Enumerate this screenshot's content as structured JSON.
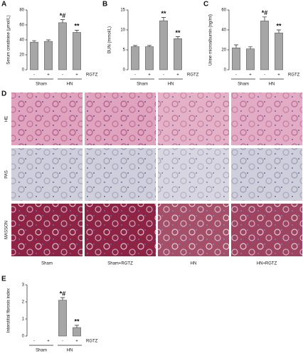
{
  "chart_data": [
    {
      "type": "bar",
      "panel": "A",
      "y_label": "Serum creatinine (μmol/L)",
      "categories": [
        "-",
        "+",
        "-",
        "+"
      ],
      "groups": [
        "Sham",
        "HN"
      ],
      "treatment_label": "RGTZ",
      "values": [
        37,
        38,
        63,
        50
      ],
      "errors": [
        2,
        2,
        4,
        3
      ],
      "annotations": [
        null,
        null,
        "*#",
        "**"
      ],
      "color": "#a6a6a6",
      "ylim": [
        0,
        80
      ],
      "yticks": [
        0,
        20,
        40,
        60,
        80
      ]
    },
    {
      "type": "bar",
      "panel": "B",
      "y_label": "BUN (mmol/L)",
      "categories": [
        "-",
        "+",
        "-",
        "+"
      ],
      "groups": [
        "Sham",
        "HN"
      ],
      "treatment_label": "RGTZ",
      "values": [
        5.8,
        5.8,
        12.3,
        7.8
      ],
      "errors": [
        0.3,
        0.3,
        0.8,
        0.5
      ],
      "annotations": [
        null,
        null,
        "**",
        "**"
      ],
      "color": "#a6a6a6",
      "ylim": [
        0,
        15
      ],
      "yticks": [
        0,
        5,
        10,
        15
      ]
    },
    {
      "type": "bar",
      "panel": "C",
      "y_label": "Urine microalbumin (ng/ml)",
      "categories": [
        "-",
        "+",
        "-",
        "+"
      ],
      "groups": [
        "Sham",
        "HN"
      ],
      "treatment_label": "RGTZ",
      "values": [
        22,
        21,
        49,
        37
      ],
      "errors": [
        3,
        2,
        4,
        3
      ],
      "annotations": [
        null,
        null,
        "*#",
        "**"
      ],
      "color": "#a6a6a6",
      "ylim": [
        0,
        60
      ],
      "yticks": [
        0,
        20,
        40,
        60
      ]
    },
    {
      "type": "bar",
      "panel": "E",
      "y_label": "Interstitial fibrosis index",
      "categories": [
        "-",
        "+",
        "-",
        "+"
      ],
      "groups": [
        "Sham",
        "HN"
      ],
      "treatment_label": "RGTZ",
      "values": [
        0,
        0,
        2.1,
        0.5
      ],
      "errors": [
        null,
        null,
        0.15,
        0.13
      ],
      "annotations": [
        null,
        null,
        "*#",
        "**"
      ],
      "color": "#a6a6a6",
      "ylim": [
        0,
        3
      ],
      "yticks": [
        0,
        1,
        2,
        3
      ]
    }
  ],
  "histology": {
    "panel": "D",
    "rows": [
      "HE",
      "PAS",
      "MASSON"
    ],
    "columns": [
      "Sham",
      "Sham+RGTZ",
      "HN",
      "HN+RGTZ"
    ]
  }
}
